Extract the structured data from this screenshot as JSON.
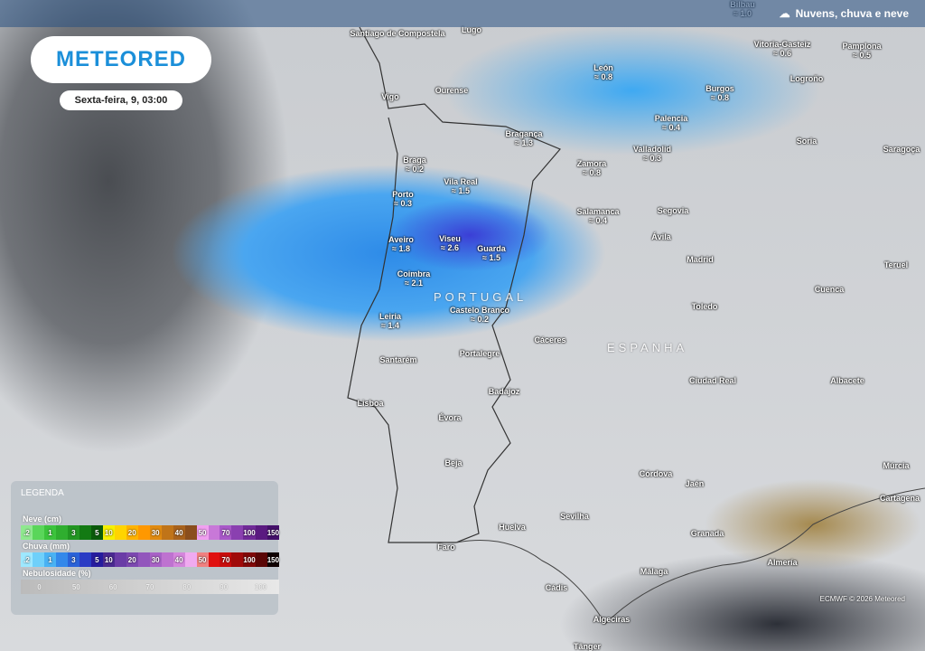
{
  "title": "Nuvens, chuva e neve",
  "title_icon": "cloud-rain-snow-icon",
  "logo": "METEORED",
  "date": "Sexta-feira, 9, 03:00",
  "copyright": "ECMWF © 2026 Meteored",
  "countries": [
    "PORTUGAL",
    "ESPANHA"
  ],
  "cities": [
    {
      "name": "Bilbau",
      "value": "1.0"
    },
    {
      "name": "Santiago de Compostela",
      "value": ""
    },
    {
      "name": "Lugo",
      "value": ""
    },
    {
      "name": "Vitoria-Gasteiz",
      "value": "0.6"
    },
    {
      "name": "Pamplona",
      "value": "0.5"
    },
    {
      "name": "León",
      "value": "0.8"
    },
    {
      "name": "Logroño",
      "value": ""
    },
    {
      "name": "Burgos",
      "value": "0.8"
    },
    {
      "name": "Ourense",
      "value": ""
    },
    {
      "name": "Vigo",
      "value": ""
    },
    {
      "name": "Palencia",
      "value": "0.4"
    },
    {
      "name": "Bragança",
      "value": "1.3"
    },
    {
      "name": "Soria",
      "value": ""
    },
    {
      "name": "Saragoça",
      "value": ""
    },
    {
      "name": "Valladolid",
      "value": "0.3"
    },
    {
      "name": "Braga",
      "value": "0.2"
    },
    {
      "name": "Zamora",
      "value": "0.8"
    },
    {
      "name": "Vila Real",
      "value": "1.5"
    },
    {
      "name": "Porto",
      "value": "0.3"
    },
    {
      "name": "Salamanca",
      "value": "0.4"
    },
    {
      "name": "Segovia",
      "value": ""
    },
    {
      "name": "Aveiro",
      "value": "1.8"
    },
    {
      "name": "Viseu",
      "value": "2.6"
    },
    {
      "name": "Guarda",
      "value": "1.5"
    },
    {
      "name": "Ávila",
      "value": ""
    },
    {
      "name": "Madrid",
      "value": ""
    },
    {
      "name": "Teruel",
      "value": ""
    },
    {
      "name": "Coimbra",
      "value": "2.1"
    },
    {
      "name": "Cuenca",
      "value": ""
    },
    {
      "name": "Castelo Branco",
      "value": "0.2"
    },
    {
      "name": "Leiria",
      "value": "1.4"
    },
    {
      "name": "Toledo",
      "value": ""
    },
    {
      "name": "Cáceres",
      "value": ""
    },
    {
      "name": "Portalegre",
      "value": ""
    },
    {
      "name": "Santarém",
      "value": ""
    },
    {
      "name": "Ciudad Real",
      "value": ""
    },
    {
      "name": "Albacete",
      "value": ""
    },
    {
      "name": "Lisboa",
      "value": ""
    },
    {
      "name": "Badajoz",
      "value": ""
    },
    {
      "name": "Évora",
      "value": ""
    },
    {
      "name": "Beja",
      "value": ""
    },
    {
      "name": "Córdova",
      "value": ""
    },
    {
      "name": "Jaén",
      "value": ""
    },
    {
      "name": "Múrcia",
      "value": ""
    },
    {
      "name": "Cartagena",
      "value": ""
    },
    {
      "name": "Huelva",
      "value": ""
    },
    {
      "name": "Sevilha",
      "value": ""
    },
    {
      "name": "Granada",
      "value": ""
    },
    {
      "name": "Faro",
      "value": ""
    },
    {
      "name": "Almería",
      "value": ""
    },
    {
      "name": "Málaga",
      "value": ""
    },
    {
      "name": "Cádis",
      "value": ""
    },
    {
      "name": "Algeciras",
      "value": ""
    },
    {
      "name": "Tânger",
      "value": ""
    }
  ],
  "legend": {
    "title": "LEGENDA",
    "snow": {
      "label": "Neve (cm)",
      "steps": [
        ".2",
        "",
        "1",
        "",
        "3",
        "",
        "5",
        "10",
        "",
        "20",
        "",
        "30",
        "",
        "40",
        "",
        "50",
        "",
        "70",
        "",
        "100",
        "",
        "150"
      ],
      "colors": [
        "#8fe88f",
        "#5ad65a",
        "#3cc43c",
        "#2fae2f",
        "#229622",
        "#137a13",
        "#0a5a0a",
        "#f6f000",
        "#ffd400",
        "#ffb300",
        "#ff9800",
        "#e08a10",
        "#c07418",
        "#a8621c",
        "#8a4e1c",
        "#f0a0f0",
        "#c878d8",
        "#a858c8",
        "#8a40b0",
        "#702a98",
        "#5a1a80",
        "#44106a"
      ]
    },
    "rain": {
      "label": "Chuva (mm)",
      "steps": [
        ".2",
        "",
        "1",
        "",
        "3",
        "",
        "5",
        "10",
        "",
        "20",
        "",
        "30",
        "",
        "40",
        "",
        "50",
        "",
        "70",
        "",
        "100",
        "",
        "150"
      ],
      "colors": [
        "#9ee8ff",
        "#6fd0fa",
        "#49b2f4",
        "#3388ea",
        "#2a62d8",
        "#2a3cc4",
        "#261c9e",
        "#4a2a90",
        "#6a3ca6",
        "#7c48b0",
        "#9256bc",
        "#a862c6",
        "#be72d0",
        "#d486dc",
        "#f0aaf0",
        "#f08080",
        "#e01010",
        "#c80c0c",
        "#a00a0a",
        "#800808",
        "#5a0606",
        "#100000"
      ]
    },
    "cloud": {
      "label": "Nebulosidade (%)",
      "steps": [
        "0",
        "50",
        "60",
        "70",
        "80",
        "90",
        "100"
      ]
    }
  }
}
